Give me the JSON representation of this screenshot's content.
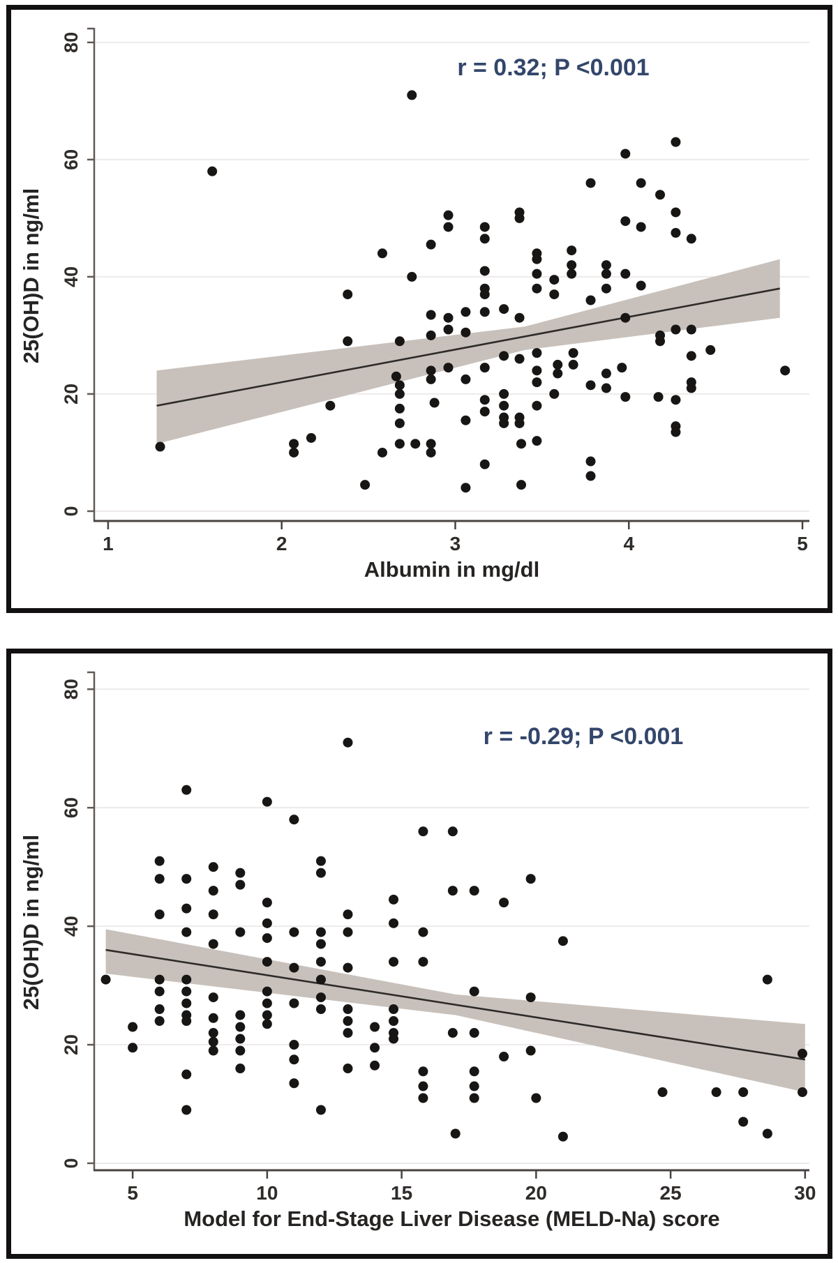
{
  "page": {
    "background": "#ffffff",
    "panel_border_color": "#121011"
  },
  "chart_data": [
    {
      "type": "scatter",
      "title": "",
      "xlabel": "Albumin in mg/dl",
      "ylabel": "25(OH)D in ng/ml",
      "annotation": "r = 0.32; P <0.001",
      "annotation_color": "#33466b",
      "xlim": [
        0.92,
        5.04
      ],
      "ylim": [
        -1.67,
        82.0
      ],
      "xticks": [
        1,
        2,
        3,
        4,
        5
      ],
      "yticks": [
        0,
        20,
        40,
        60,
        80
      ],
      "grid": true,
      "legend": "none",
      "dot_color": "#181614",
      "band_color": "#c8c1bb",
      "line_color": "#2e2b29",
      "grid_color": "#edeae9",
      "axis_color": "#5f5a56",
      "tick_text_color": "#2f2c2a",
      "regression_line": [
        [
          1.28,
          18
        ],
        [
          4.87,
          38
        ]
      ],
      "ci_band": [
        [
          1.28,
          24
        ],
        [
          3.4,
          31.5
        ],
        [
          4.87,
          43
        ],
        [
          4.87,
          33
        ],
        [
          3.4,
          27.5
        ],
        [
          1.28,
          11.5
        ]
      ],
      "points": [
        [
          1.3,
          11
        ],
        [
          1.6,
          58
        ],
        [
          2.07,
          11.5
        ],
        [
          2.07,
          10
        ],
        [
          2.17,
          12.5
        ],
        [
          2.28,
          18
        ],
        [
          2.38,
          37
        ],
        [
          2.38,
          29
        ],
        [
          2.48,
          4.5
        ],
        [
          2.58,
          44
        ],
        [
          2.58,
          10
        ],
        [
          2.66,
          23
        ],
        [
          2.68,
          29
        ],
        [
          2.68,
          21.5
        ],
        [
          2.68,
          20
        ],
        [
          2.68,
          17.5
        ],
        [
          2.68,
          15
        ],
        [
          2.68,
          11.5
        ],
        [
          2.75,
          71
        ],
        [
          2.75,
          40
        ],
        [
          2.77,
          11.5
        ],
        [
          2.86,
          45.5
        ],
        [
          2.86,
          33.5
        ],
        [
          2.86,
          30
        ],
        [
          2.86,
          24
        ],
        [
          2.86,
          22.5
        ],
        [
          2.86,
          11.5
        ],
        [
          2.86,
          10
        ],
        [
          2.88,
          18.5
        ],
        [
          2.96,
          50.5
        ],
        [
          2.96,
          48.5
        ],
        [
          2.96,
          33
        ],
        [
          2.96,
          31
        ],
        [
          2.96,
          24.5
        ],
        [
          3.06,
          34
        ],
        [
          3.06,
          30.5
        ],
        [
          3.06,
          22.5
        ],
        [
          3.06,
          15.5
        ],
        [
          3.06,
          4
        ],
        [
          3.17,
          48.5
        ],
        [
          3.17,
          46.5
        ],
        [
          3.17,
          41
        ],
        [
          3.17,
          38
        ],
        [
          3.17,
          37
        ],
        [
          3.17,
          34
        ],
        [
          3.17,
          24.5
        ],
        [
          3.17,
          19
        ],
        [
          3.17,
          17
        ],
        [
          3.17,
          8
        ],
        [
          3.28,
          34.5
        ],
        [
          3.28,
          26.5
        ],
        [
          3.28,
          20
        ],
        [
          3.28,
          18
        ],
        [
          3.28,
          16
        ],
        [
          3.28,
          15
        ],
        [
          3.37,
          51
        ],
        [
          3.37,
          50
        ],
        [
          3.37,
          33
        ],
        [
          3.37,
          26
        ],
        [
          3.37,
          16
        ],
        [
          3.37,
          15
        ],
        [
          3.38,
          11.5
        ],
        [
          3.38,
          4.5
        ],
        [
          3.47,
          44
        ],
        [
          3.47,
          43
        ],
        [
          3.47,
          40.5
        ],
        [
          3.47,
          38
        ],
        [
          3.47,
          27
        ],
        [
          3.47,
          24
        ],
        [
          3.47,
          22
        ],
        [
          3.47,
          18
        ],
        [
          3.47,
          12
        ],
        [
          3.57,
          39.5
        ],
        [
          3.57,
          37
        ],
        [
          3.57,
          20
        ],
        [
          3.59,
          25
        ],
        [
          3.59,
          23.5
        ],
        [
          3.67,
          44.5
        ],
        [
          3.67,
          42
        ],
        [
          3.67,
          40.5
        ],
        [
          3.68,
          27
        ],
        [
          3.68,
          25
        ],
        [
          3.78,
          56
        ],
        [
          3.78,
          36
        ],
        [
          3.78,
          21.5
        ],
        [
          3.78,
          8.5
        ],
        [
          3.78,
          6
        ],
        [
          3.87,
          42
        ],
        [
          3.87,
          40.5
        ],
        [
          3.87,
          38
        ],
        [
          3.87,
          23.5
        ],
        [
          3.87,
          21
        ],
        [
          3.96,
          24.5
        ],
        [
          3.98,
          61
        ],
        [
          3.98,
          49.5
        ],
        [
          3.98,
          40.5
        ],
        [
          3.98,
          33
        ],
        [
          3.98,
          19.5
        ],
        [
          4.07,
          56
        ],
        [
          4.07,
          48.5
        ],
        [
          4.07,
          38.5
        ],
        [
          4.18,
          54
        ],
        [
          4.18,
          30
        ],
        [
          4.18,
          29
        ],
        [
          4.17,
          19.5
        ],
        [
          4.27,
          63
        ],
        [
          4.27,
          51
        ],
        [
          4.27,
          47.5
        ],
        [
          4.27,
          31
        ],
        [
          4.27,
          19
        ],
        [
          4.27,
          14.5
        ],
        [
          4.27,
          13.5
        ],
        [
          4.36,
          46.5
        ],
        [
          4.36,
          31
        ],
        [
          4.36,
          26.5
        ],
        [
          4.36,
          22
        ],
        [
          4.36,
          21
        ],
        [
          4.47,
          27.5
        ],
        [
          4.9,
          24
        ]
      ]
    },
    {
      "type": "scatter",
      "title": "",
      "xlabel": "Model for End-Stage Liver Disease (MELD-Na) score",
      "ylabel": "25(OH)D in ng/ml",
      "annotation": "r = -0.29; P <0.001",
      "annotation_color": "#33466b",
      "xlim": [
        3.57,
        30.16
      ],
      "ylim": [
        -1.18,
        82.5
      ],
      "xticks": [
        5,
        10,
        15,
        20,
        25,
        30
      ],
      "yticks": [
        0,
        20,
        40,
        60,
        80
      ],
      "grid": true,
      "legend": "none",
      "dot_color": "#181614",
      "band_color": "#c8c1bb",
      "line_color": "#2e2b29",
      "grid_color": "#edeae9",
      "axis_color": "#5f5a56",
      "tick_text_color": "#2f2c2a",
      "regression_line": [
        [
          4.0,
          36
        ],
        [
          30,
          17.5
        ]
      ],
      "ci_band": [
        [
          4.0,
          39.5
        ],
        [
          17,
          28.5
        ],
        [
          30,
          23.5
        ],
        [
          30,
          12
        ],
        [
          17,
          25
        ],
        [
          4.0,
          32
        ]
      ],
      "points": [
        [
          4,
          31
        ],
        [
          5,
          23
        ],
        [
          5,
          19.5
        ],
        [
          6,
          51
        ],
        [
          6,
          48
        ],
        [
          6,
          42
        ],
        [
          6,
          31
        ],
        [
          6,
          29
        ],
        [
          6,
          26
        ],
        [
          6,
          24
        ],
        [
          7,
          63
        ],
        [
          7,
          48
        ],
        [
          7,
          43
        ],
        [
          7,
          39
        ],
        [
          7,
          31
        ],
        [
          7,
          29
        ],
        [
          7,
          27
        ],
        [
          7,
          25
        ],
        [
          7,
          24
        ],
        [
          7,
          15
        ],
        [
          7,
          9
        ],
        [
          8,
          50
        ],
        [
          8,
          46
        ],
        [
          8,
          42
        ],
        [
          8,
          37
        ],
        [
          8,
          28
        ],
        [
          8,
          24.5
        ],
        [
          8,
          22
        ],
        [
          8,
          20.5
        ],
        [
          8,
          19
        ],
        [
          9,
          49
        ],
        [
          9,
          47
        ],
        [
          9,
          39
        ],
        [
          9,
          25
        ],
        [
          9,
          23
        ],
        [
          9,
          21
        ],
        [
          9,
          19
        ],
        [
          9,
          16
        ],
        [
          10,
          61
        ],
        [
          10,
          44
        ],
        [
          10,
          40.5
        ],
        [
          10,
          38
        ],
        [
          10,
          34
        ],
        [
          10,
          29
        ],
        [
          10,
          27
        ],
        [
          10,
          25
        ],
        [
          10,
          23.5
        ],
        [
          11,
          58
        ],
        [
          11,
          39
        ],
        [
          11,
          33
        ],
        [
          11,
          27
        ],
        [
          11,
          20
        ],
        [
          11,
          17.5
        ],
        [
          11,
          13.5
        ],
        [
          12,
          51
        ],
        [
          12,
          49
        ],
        [
          12,
          39
        ],
        [
          12,
          37
        ],
        [
          12,
          34
        ],
        [
          12,
          31
        ],
        [
          12,
          28
        ],
        [
          12,
          26
        ],
        [
          12,
          9
        ],
        [
          13,
          71
        ],
        [
          13,
          42
        ],
        [
          13,
          39
        ],
        [
          13,
          33
        ],
        [
          13,
          26
        ],
        [
          13,
          24
        ],
        [
          13,
          22
        ],
        [
          13,
          16
        ],
        [
          14,
          23
        ],
        [
          14,
          19.5
        ],
        [
          14,
          16.5
        ],
        [
          14.7,
          44.5
        ],
        [
          14.7,
          40.5
        ],
        [
          14.7,
          34
        ],
        [
          14.7,
          26
        ],
        [
          14.7,
          24
        ],
        [
          14.7,
          22
        ],
        [
          14.7,
          21
        ],
        [
          15.8,
          56
        ],
        [
          15.8,
          39
        ],
        [
          15.8,
          34
        ],
        [
          15.8,
          15.5
        ],
        [
          15.8,
          13
        ],
        [
          15.8,
          11
        ],
        [
          16.9,
          56
        ],
        [
          16.9,
          46
        ],
        [
          16.9,
          22
        ],
        [
          17,
          5
        ],
        [
          17.7,
          46
        ],
        [
          17.7,
          29
        ],
        [
          17.7,
          22
        ],
        [
          17.7,
          15.5
        ],
        [
          17.7,
          13
        ],
        [
          17.7,
          11
        ],
        [
          18.8,
          44
        ],
        [
          18.8,
          18
        ],
        [
          19.8,
          48
        ],
        [
          19.8,
          28
        ],
        [
          19.8,
          19
        ],
        [
          20,
          11
        ],
        [
          21,
          37.5
        ],
        [
          21,
          4.5
        ],
        [
          24.7,
          12
        ],
        [
          26.7,
          12
        ],
        [
          27.7,
          12
        ],
        [
          27.7,
          7
        ],
        [
          28.6,
          31
        ],
        [
          28.6,
          5
        ],
        [
          29.9,
          18.5
        ],
        [
          29.9,
          12
        ]
      ]
    }
  ]
}
